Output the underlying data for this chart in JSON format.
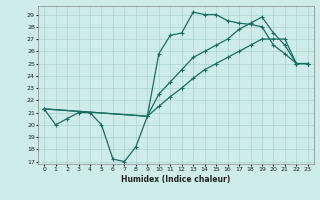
{
  "xlabel": "Humidex (Indice chaleur)",
  "bg_color": "#ceecea",
  "line_color": "#1a6e62",
  "grid_color": "#aad4cf",
  "ylim": [
    17,
    29.5
  ],
  "xlim": [
    -0.5,
    23.5
  ],
  "yticks": [
    17,
    18,
    19,
    20,
    21,
    22,
    23,
    24,
    25,
    26,
    27,
    28,
    29
  ],
  "xticks": [
    0,
    1,
    2,
    3,
    4,
    5,
    6,
    7,
    8,
    9,
    10,
    11,
    12,
    13,
    14,
    15,
    16,
    17,
    18,
    19,
    20,
    21,
    22,
    23
  ],
  "line1_x": [
    0,
    1,
    2,
    3,
    4,
    5,
    6,
    7,
    8,
    9,
    10,
    11,
    12,
    13,
    14,
    15,
    16,
    17,
    18,
    19,
    20,
    21,
    22,
    23
  ],
  "line1_y": [
    21.3,
    20.0,
    20.5,
    21.0,
    21.0,
    20.0,
    17.2,
    17.0,
    18.2,
    20.7,
    25.8,
    27.3,
    27.5,
    29.2,
    29.0,
    29.0,
    28.5,
    28.3,
    28.2,
    28.0,
    26.5,
    25.8,
    25.0,
    25.0
  ],
  "line2_x": [
    0,
    9,
    10,
    11,
    12,
    13,
    14,
    15,
    16,
    17,
    18,
    19,
    20,
    21,
    22,
    23
  ],
  "line2_y": [
    21.3,
    20.7,
    22.5,
    23.5,
    24.5,
    25.5,
    26.0,
    26.5,
    27.0,
    27.8,
    28.3,
    28.8,
    27.5,
    26.5,
    25.0,
    25.0
  ],
  "line3_x": [
    0,
    9,
    10,
    11,
    12,
    13,
    14,
    15,
    16,
    17,
    18,
    19,
    20,
    21,
    22,
    23
  ],
  "line3_y": [
    21.3,
    20.7,
    21.5,
    22.3,
    23.0,
    23.8,
    24.5,
    25.0,
    25.5,
    26.0,
    26.5,
    27.0,
    27.0,
    27.0,
    25.0,
    25.0
  ]
}
